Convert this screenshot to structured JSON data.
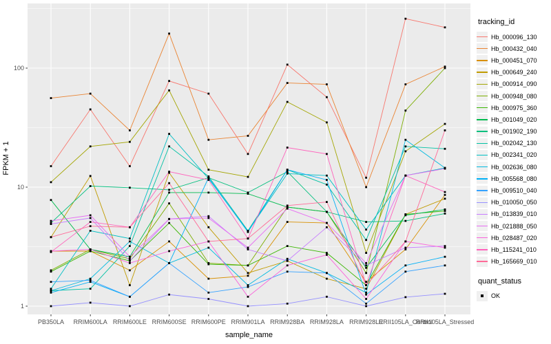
{
  "axes": {
    "y_title": "FPKM + 1",
    "x_title": "sample_name"
  },
  "legend": {
    "tracking_title": "tracking_id",
    "quant_title": "quant_status",
    "quant_items": [
      {
        "label": "OK"
      }
    ]
  },
  "chart_data": {
    "type": "line",
    "title": "",
    "xlabel": "sample_name",
    "ylabel": "FPKM + 1",
    "y_scale": "log10",
    "ylim": [
      0.95,
      340
    ],
    "y_major_ticks": [
      1,
      10,
      100
    ],
    "y_minor_ticks": [
      3.162,
      31.62,
      316.2
    ],
    "grid": "on",
    "legend_position": "right",
    "panel_bg": "#EBEBEB",
    "grid_color": "#FFFFFF",
    "marker": "black-square",
    "categories": [
      "PB350LA",
      "RRIM600LA",
      "RRIM600LE",
      "RRIM600SE",
      "RRIM600PE",
      "RRIM901LA",
      "RRIM928BA",
      "RRIM928LA",
      "RRIM928LE",
      "RRII105LA_Control",
      "RRII105LA_Stressed"
    ],
    "series": [
      {
        "name": "Hb_000096_130",
        "color": "#F8766D",
        "values": [
          15,
          45,
          15,
          78,
          61,
          19,
          107,
          57,
          12,
          260,
          220
        ]
      },
      {
        "name": "Hb_000432_040",
        "color": "#EA8331",
        "values": [
          56,
          61,
          30,
          195,
          25,
          27,
          75,
          73,
          10,
          73,
          103
        ]
      },
      {
        "name": "Hb_000451_070",
        "color": "#D89000",
        "values": [
          2.9,
          2.9,
          2.0,
          3.5,
          1.7,
          1.8,
          5.1,
          5.0,
          1.6,
          3.0,
          8.6
        ]
      },
      {
        "name": "Hb_000649_240",
        "color": "#C09B00",
        "values": [
          3.8,
          12.4,
          1.5,
          13.2,
          4.6,
          1.9,
          2.4,
          1.7,
          1.4,
          5.9,
          8.0
        ]
      },
      {
        "name": "Hb_000914_090",
        "color": "#A3A500",
        "values": [
          11,
          22,
          24,
          65,
          14,
          12.2,
          52,
          35,
          2.8,
          20,
          34
        ]
      },
      {
        "name": "Hb_000948_080",
        "color": "#7CAE00",
        "values": [
          2.0,
          3.0,
          2.5,
          7.3,
          2.3,
          2.2,
          6.8,
          6.2,
          1.9,
          44,
          100
        ]
      },
      {
        "name": "Hb_000975_360",
        "color": "#39B600",
        "values": [
          1.95,
          2.9,
          2.4,
          5.0,
          2.25,
          2.2,
          3.2,
          2.8,
          1.5,
          5.9,
          6.3
        ]
      },
      {
        "name": "Hb_001049_020",
        "color": "#00BB4E",
        "values": [
          7.8,
          3.0,
          2.6,
          9.0,
          9.0,
          8.8,
          6.8,
          6.2,
          2.1,
          5.8,
          6.5
        ]
      },
      {
        "name": "Hb_001902_190",
        "color": "#00BF7D",
        "values": [
          5.0,
          10.2,
          9.9,
          9.5,
          12.0,
          9.0,
          13.5,
          6.2,
          5.1,
          5.2,
          6.0
        ]
      },
      {
        "name": "Hb_002042_130",
        "color": "#00C1A3",
        "values": [
          1.35,
          1.4,
          3.2,
          22,
          12.3,
          4.3,
          14,
          10.5,
          3.6,
          22,
          21
        ]
      },
      {
        "name": "Hb_002341_020",
        "color": "#00BFC4",
        "values": [
          1.4,
          4.3,
          3.7,
          28,
          11.8,
          4.25,
          13,
          12.5,
          4.4,
          12.5,
          14.5
        ]
      },
      {
        "name": "Hb_002636_080",
        "color": "#00BAE0",
        "values": [
          1.35,
          1.7,
          3.5,
          2.3,
          3.1,
          1.5,
          2.5,
          1.9,
          1.3,
          25,
          14.5
        ]
      },
      {
        "name": "Hb_005568_080",
        "color": "#00B0F6",
        "values": [
          1.3,
          1.6,
          1.2,
          2.3,
          12.0,
          4.2,
          14,
          11.5,
          1.25,
          2.2,
          2.6
        ]
      },
      {
        "name": "Hb_009510_040",
        "color": "#35A2FF",
        "values": [
          1.6,
          1.65,
          1.2,
          2.3,
          1.3,
          1.45,
          1.95,
          1.9,
          1.05,
          1.95,
          2.2
        ]
      },
      {
        "name": "Hb_010050_050",
        "color": "#9590FF",
        "values": [
          1.0,
          1.07,
          1.0,
          1.25,
          1.15,
          1.0,
          1.05,
          1.2,
          1.0,
          1.19,
          1.27
        ]
      },
      {
        "name": "Hb_013839_010",
        "color": "#C77CFF",
        "values": [
          4.9,
          5.5,
          2.4,
          5.4,
          5.7,
          3.0,
          2.4,
          4.6,
          2.2,
          3.1,
          3.2
        ]
      },
      {
        "name": "Hb_021888_050",
        "color": "#E76BF3",
        "values": [
          5.2,
          5.8,
          2.6,
          5.4,
          5.5,
          3.1,
          6.6,
          5.0,
          2.3,
          12.5,
          14.3
        ]
      },
      {
        "name": "Hb_028487_020",
        "color": "#FA62DB",
        "values": [
          2.9,
          3.0,
          2.3,
          2.9,
          3.5,
          1.2,
          2.2,
          2.7,
          1.15,
          3.5,
          3.1
        ]
      },
      {
        "name": "Hb_115241_010",
        "color": "#FF62BC",
        "values": [
          2.85,
          5.1,
          4.6,
          13.5,
          11.5,
          3.7,
          21.5,
          19,
          1.5,
          12.5,
          9.1
        ]
      },
      {
        "name": "Hb_165669_010",
        "color": "#FF6A98",
        "values": [
          3.8,
          4.7,
          4.6,
          10.8,
          3.5,
          3.7,
          7.0,
          7.5,
          1.5,
          3.5,
          30
        ]
      }
    ]
  }
}
